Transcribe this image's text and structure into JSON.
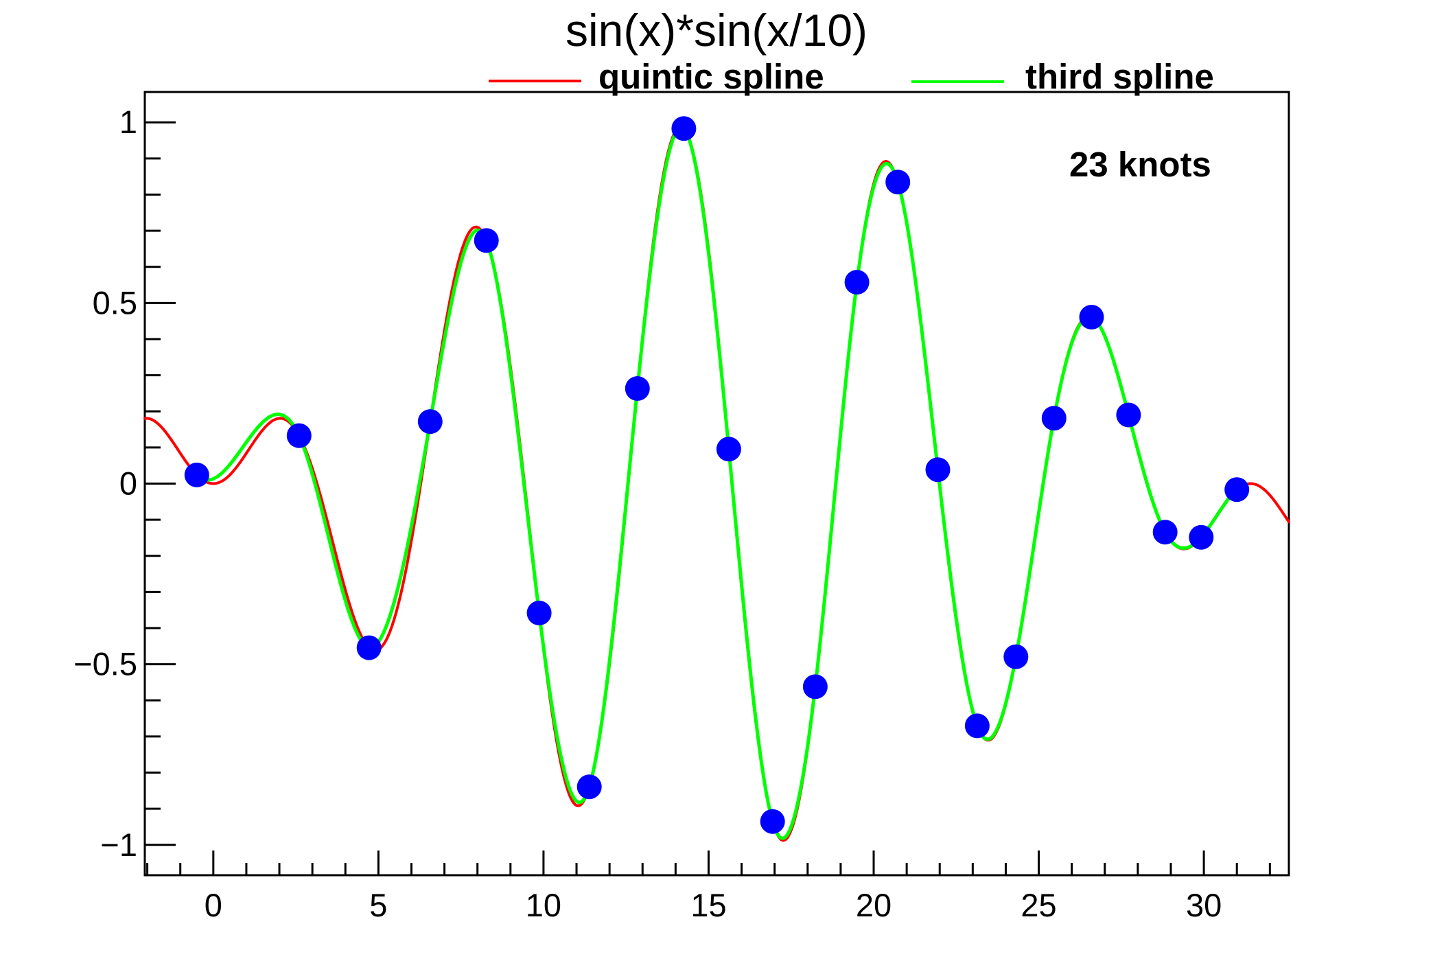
{
  "page": {
    "background": "#ffffff"
  },
  "chart_data": {
    "type": "line",
    "title": "sin(x)*sin(x/10)",
    "annotation": "23 knots",
    "function": "sin(x)*sin(x/10)",
    "x_range": [
      -2.075,
      32.575
    ],
    "y_range": [
      -1.084,
      1.084
    ],
    "grid": false,
    "legend_position": "top",
    "axis_color": "#000000",
    "x_ticks": {
      "major": [
        0,
        5,
        10,
        15,
        20,
        25,
        30
      ],
      "major_labels": [
        "0",
        "5",
        "10",
        "15",
        "20",
        "25",
        "30"
      ],
      "minor_step": 1
    },
    "y_ticks": {
      "major": [
        -1,
        -0.5,
        0,
        0.5,
        1
      ],
      "major_labels": [
        "−1",
        "−0.5",
        "0",
        "0.5",
        "1"
      ],
      "minor_step": 0.1
    },
    "legend": [
      {
        "label": "quintic spline",
        "color": "#ff0000"
      },
      {
        "label": "third spline",
        "color": "#00ff00"
      }
    ],
    "series": [
      {
        "name": "quintic spline",
        "render": "function",
        "color": "#ff0000",
        "width": 4,
        "domain": [
          -2.075,
          32.575
        ]
      },
      {
        "name": "third spline",
        "render": "cubic-spline",
        "color": "#00ff00",
        "width": 5,
        "domain": [
          -0.5,
          31
        ],
        "end_slopes": [
          -0.0917,
          0.0784
        ]
      }
    ],
    "knots": {
      "count": 23,
      "color": "#0000ff",
      "radius": 18,
      "points": [
        [
          -0.5,
          0.024
        ],
        [
          2.5983,
          0.1328
        ],
        [
          4.7159,
          -0.4543
        ],
        [
          6.5683,
          0.1717
        ],
        [
          8.2708,
          0.6729
        ],
        [
          9.8684,
          -0.3581
        ],
        [
          11.3877,
          -0.8392
        ],
        [
          12.8443,
          0.2632
        ],
        [
          14.25,
          0.9829
        ],
        [
          15.6125,
          0.0953
        ],
        [
          16.9375,
          -0.9352
        ],
        [
          18.23,
          -0.5623
        ],
        [
          19.493,
          0.5575
        ],
        [
          20.7302,
          0.8348
        ],
        [
          21.9436,
          0.0386
        ],
        [
          23.1352,
          -0.6705
        ],
        [
          24.3076,
          -0.4793
        ],
        [
          25.4615,
          0.1811
        ],
        [
          26.5988,
          0.4608
        ],
        [
          27.7201,
          0.1901
        ],
        [
          28.8269,
          -0.1344
        ],
        [
          29.9199,
          -0.1486
        ],
        [
          31.0,
          -0.0168
        ]
      ]
    }
  }
}
